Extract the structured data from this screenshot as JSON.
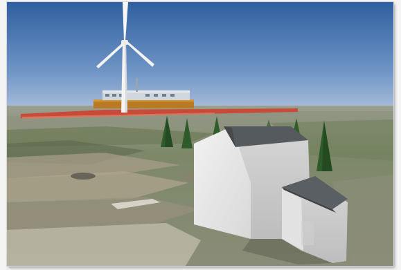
{
  "scene": {
    "type": "3d-render",
    "subjects": [
      "wind-turbine",
      "industrial-building",
      "house",
      "trees",
      "ground-plane"
    ],
    "colors": {
      "sky_top": "#3f6fb0",
      "sky_horizon": "#9cb5d6",
      "ground": "#7f8a6a",
      "house_wall_light": "#dedede",
      "house_wall_shadow": "#bfbfbf",
      "roof": "#555a5e",
      "turbine": "#f0f0f0",
      "trees": "#2f5a2a",
      "industrial_base": "#b87a22",
      "red_strip": "#c84a38"
    }
  }
}
